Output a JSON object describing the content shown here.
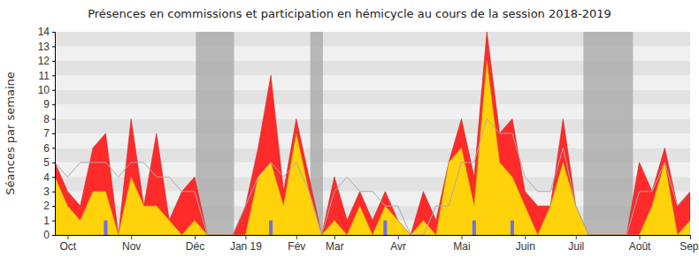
{
  "chart_data": {
    "type": "area",
    "title": "Présences en commissions et participation en hémicycle au cours de la session 2018-2019",
    "y_label": "Séances par semaine",
    "categories": [
      null,
      "Oct",
      null,
      null,
      null,
      null,
      "Nov",
      null,
      null,
      null,
      null,
      "Déc",
      null,
      null,
      null,
      "Jan 19",
      null,
      null,
      null,
      "Fév",
      null,
      null,
      "Mar",
      null,
      null,
      null,
      null,
      "Avr",
      null,
      null,
      null,
      null,
      "Mai",
      null,
      null,
      null,
      null,
      "Juin",
      null,
      null,
      null,
      "Juil",
      null,
      null,
      null,
      null,
      "Août",
      null,
      null,
      null,
      "Sept"
    ],
    "xlim": [
      0,
      50
    ],
    "ylim": [
      0,
      14
    ],
    "yticks": [
      0,
      1,
      2,
      3,
      4,
      5,
      6,
      7,
      8,
      9,
      10,
      11,
      12,
      13,
      14
    ],
    "grid": true,
    "shaded_ranges": [
      [
        11.1,
        14.1
      ],
      [
        20.1,
        21.1
      ],
      [
        41.6,
        45.5
      ]
    ],
    "series": [
      {
        "type": "area",
        "color": "#ff2a2a",
        "values": [
          5,
          3,
          2,
          6,
          7,
          0,
          8,
          2,
          7,
          1,
          3,
          4,
          0,
          0,
          0,
          2,
          6,
          11,
          3,
          8,
          4,
          0,
          4,
          1,
          3,
          1,
          3,
          1,
          0,
          3,
          1,
          5,
          8,
          4,
          14,
          7,
          8,
          3,
          2,
          2,
          8,
          2,
          0,
          0,
          0,
          0,
          5,
          3,
          6,
          2,
          3
        ]
      },
      {
        "type": "area",
        "color": "#ffd20a",
        "values": [
          4,
          2,
          1,
          3,
          3,
          0,
          4,
          2,
          2,
          1,
          0,
          1,
          0,
          0,
          0,
          0,
          4,
          5,
          2,
          7,
          3,
          0,
          1,
          0,
          2,
          0,
          2,
          1,
          0,
          1,
          0,
          5,
          6,
          2,
          12,
          5,
          4,
          2,
          0,
          2,
          5,
          2,
          0,
          0,
          0,
          0,
          0,
          2,
          5,
          0,
          1
        ]
      },
      {
        "type": "line",
        "color": "#aaaaaa",
        "values": [
          5,
          4,
          5,
          5,
          5,
          4,
          5,
          5,
          4,
          4,
          3,
          3,
          0,
          0,
          0,
          2,
          4,
          5,
          4,
          5,
          3,
          0,
          3,
          4,
          3,
          3,
          2,
          2,
          0,
          0,
          2,
          2,
          5,
          5,
          8,
          7,
          7,
          4,
          3,
          3,
          6,
          2,
          0,
          0,
          0,
          0,
          3,
          3,
          5,
          2,
          3
        ]
      },
      {
        "type": "bar",
        "color": "#6f6fe8",
        "values": [
          null,
          null,
          null,
          null,
          1,
          null,
          null,
          null,
          null,
          null,
          null,
          null,
          null,
          null,
          null,
          null,
          null,
          1,
          null,
          null,
          null,
          null,
          null,
          null,
          null,
          null,
          1,
          null,
          null,
          null,
          null,
          null,
          null,
          1,
          null,
          null,
          1,
          null,
          null,
          null,
          null,
          null,
          null,
          null,
          null,
          null,
          null,
          null,
          null,
          null,
          null
        ]
      }
    ]
  }
}
